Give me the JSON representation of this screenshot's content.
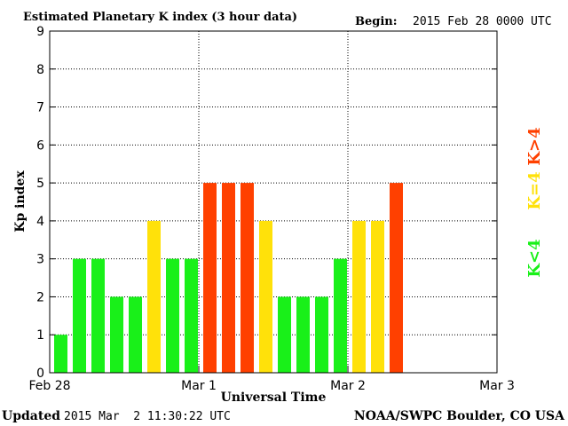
{
  "header": {
    "title": "Estimated Planetary K index (3 hour data)",
    "begin_label": "Begin:",
    "begin_value": "2015 Feb 28 0000 UTC"
  },
  "footer": {
    "updated_label": "Updated",
    "updated_value": "2015 Mar  2 11:30:22 UTC",
    "credit": "NOAA/SWPC Boulder, CO USA"
  },
  "legend": {
    "high": "K>4",
    "mid": "K=4",
    "low": "K<4"
  },
  "colors": {
    "low": "#19f019",
    "mid": "#ffe10a",
    "high": "#ff4000"
  },
  "chart_data": {
    "type": "bar",
    "xlabel": "Universal Time",
    "ylabel": "Kp index",
    "ylim": [
      0,
      9
    ],
    "yticks": [
      0,
      1,
      2,
      3,
      4,
      5,
      6,
      7,
      8,
      9
    ],
    "x_tick_labels": [
      "Feb 28",
      "Mar 1",
      "Mar 2",
      "Mar 3"
    ],
    "interval_hours": 3,
    "total_intervals": 24,
    "grid": "dotted",
    "values": [
      1,
      3,
      3,
      2,
      2,
      4,
      3,
      3,
      5,
      5,
      5,
      4,
      2,
      2,
      2,
      3,
      4,
      4,
      5
    ]
  }
}
